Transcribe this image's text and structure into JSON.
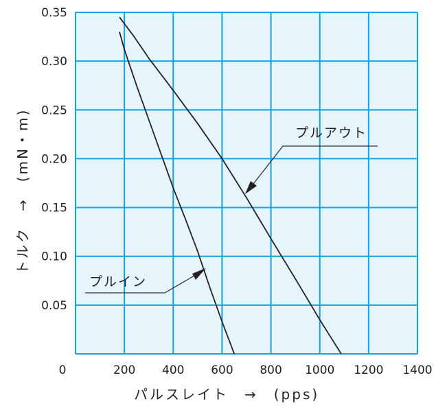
{
  "chart_data": {
    "type": "line",
    "xlabel": "パルスレイト　→　(pps)",
    "ylabel": "トルク　→　(mN・m)",
    "xlim": [
      0,
      1400
    ],
    "ylim": [
      0,
      0.35
    ],
    "x_ticks": [
      "0",
      "200",
      "400",
      "600",
      "800",
      "1000",
      "1200",
      "1400"
    ],
    "y_ticks": [
      "0.05",
      "0.10",
      "0.15",
      "0.20",
      "0.25",
      "0.30",
      "0.35"
    ],
    "grid": true,
    "colors": {
      "plot_bg": "#e6f4fc",
      "grid": "#1aa0dc",
      "line": "#222222"
    },
    "series": [
      {
        "name": "プルアウト",
        "x": [
          180,
          240,
          300,
          400,
          500,
          600,
          700,
          800,
          900,
          1000,
          1088
        ],
        "y": [
          0.345,
          0.325,
          0.303,
          0.27,
          0.236,
          0.2,
          0.16,
          0.118,
          0.077,
          0.035,
          0.0
        ]
      },
      {
        "name": "プルイン",
        "x": [
          180,
          200,
          250,
          300,
          350,
          400,
          450,
          500,
          550,
          600,
          650
        ],
        "y": [
          0.33,
          0.312,
          0.275,
          0.24,
          0.205,
          0.17,
          0.138,
          0.105,
          0.068,
          0.033,
          0.0
        ]
      }
    ],
    "annotations": [
      "プルアウト",
      "プルイン"
    ]
  }
}
